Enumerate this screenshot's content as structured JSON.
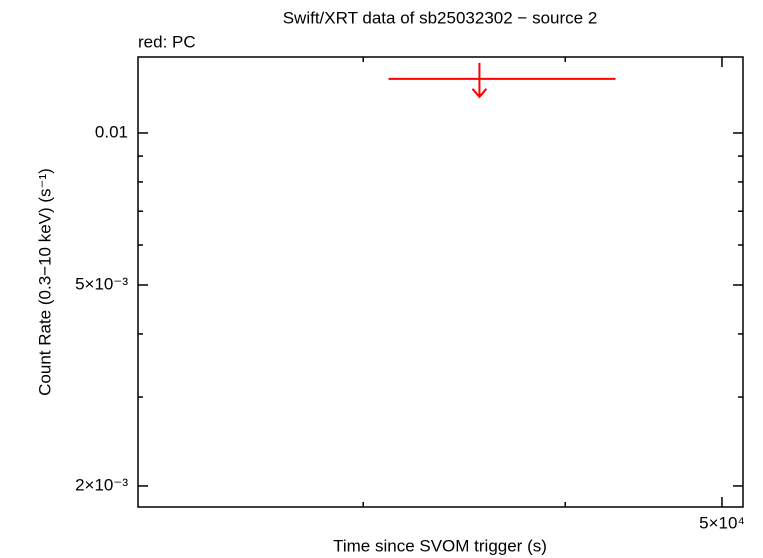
{
  "chart_data": {
    "type": "scatter",
    "title": "Swift/XRT data of sb25032302 − source 2",
    "subtitle": "red: PC",
    "x_label": "Time since SVOM trigger (s)",
    "y_label": "Count Rate (0.3−10 keV) (s⁻¹)",
    "x_log": true,
    "y_log": true,
    "xlim": [
      21770,
      51520
    ],
    "ylim": [
      0.001817,
      0.01414
    ],
    "xticks": [
      {
        "value": 50000,
        "label": "5×10⁴"
      }
    ],
    "xminor_ticks": [
      30000,
      40000
    ],
    "yticks": [
      {
        "value": 0.002,
        "label": "2×10⁻³"
      },
      {
        "value": 0.005,
        "label": "5×10⁻³"
      },
      0.01
    ],
    "yminor_ticks": [
      0.003,
      0.004,
      0.006,
      0.007,
      0.008,
      0.009
    ],
    "series": [
      {
        "name": "PC",
        "color": "#ff0000",
        "upper_limit": true,
        "x": [
          35400
        ],
        "xerr_minus": [
          4300
        ],
        "xerr_plus": [
          7570
        ],
        "values": [
          0.0128
        ]
      }
    ]
  }
}
